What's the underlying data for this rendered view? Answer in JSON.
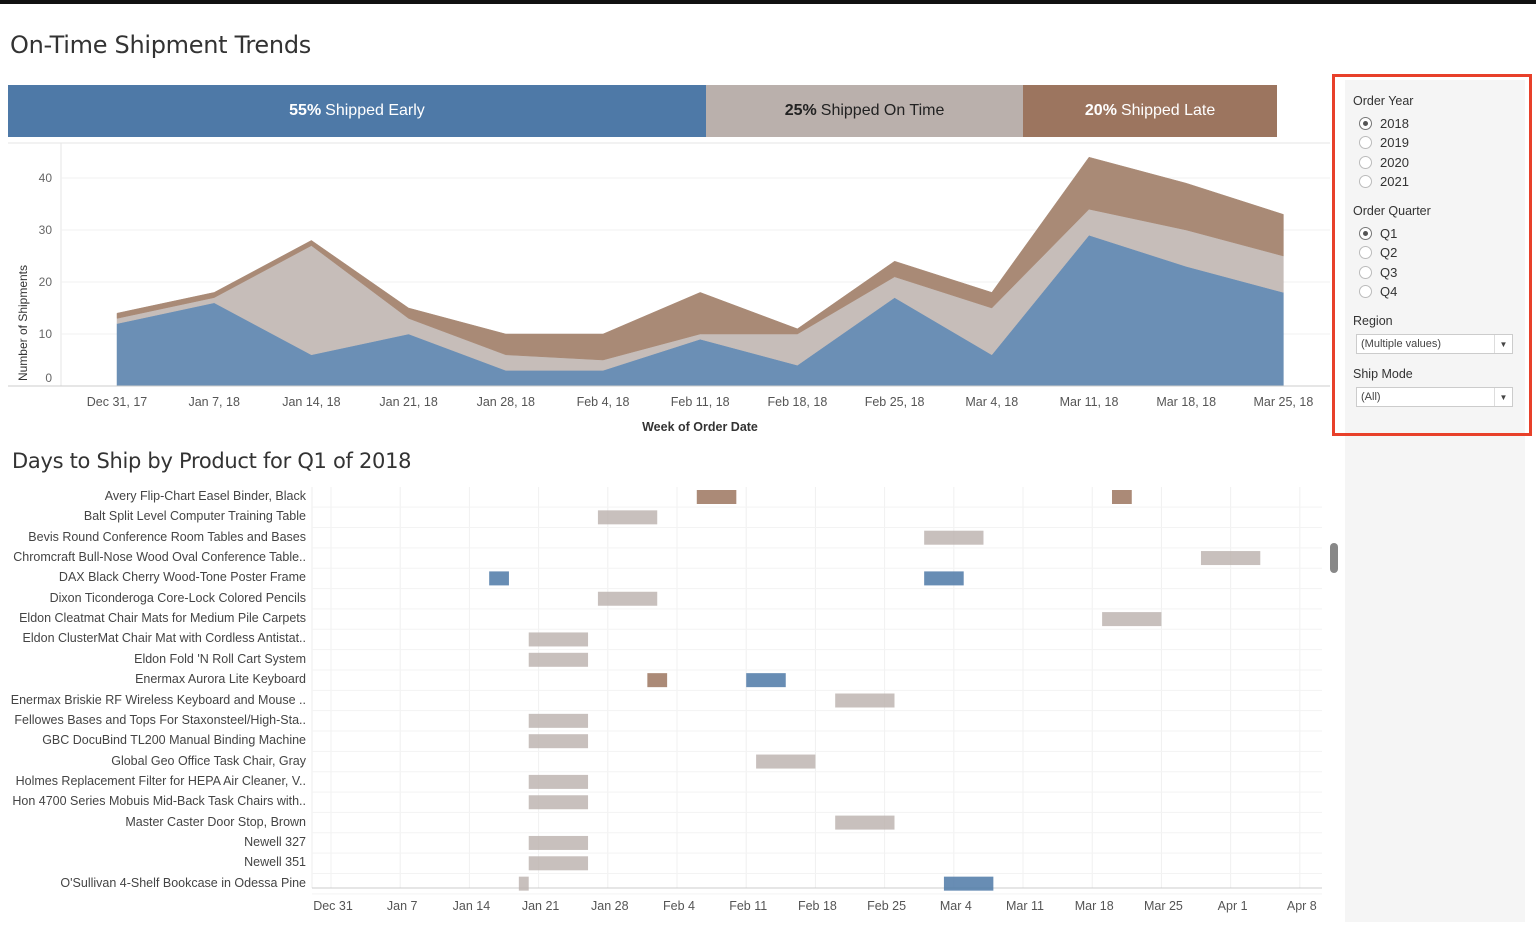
{
  "title": "On-Time Shipment Trends",
  "colors": {
    "early": "#4e79a7",
    "ontime": "#bab0ac",
    "late": "#9c755f",
    "early_area": "#6b8fb5",
    "ontime_area": "#c6bdb9",
    "late_area": "#a98a76",
    "highlight": "#e8402a"
  },
  "banner": [
    {
      "pct": "55%",
      "label": "Shipped Early",
      "share": 55,
      "key": "early"
    },
    {
      "pct": "25%",
      "label": "Shipped On Time",
      "share": 25,
      "key": "ontime"
    },
    {
      "pct": "20%",
      "label": "Shipped Late",
      "share": 20,
      "key": "late"
    }
  ],
  "chart_data": [
    {
      "type": "area",
      "stacked": true,
      "xlabel": "Week of Order Date",
      "ylabel": "Number of Shipments",
      "ylim": [
        0,
        46
      ],
      "yticks": [
        0,
        10,
        20,
        30,
        40
      ],
      "grid": true,
      "categories": [
        "Dec 31, 17",
        "Jan 7, 18",
        "Jan 14, 18",
        "Jan 21, 18",
        "Jan 28, 18",
        "Feb 4, 18",
        "Feb 11, 18",
        "Feb 18, 18",
        "Feb 25, 18",
        "Mar 4, 18",
        "Mar 11, 18",
        "Mar 18, 18",
        "Mar 25, 18"
      ],
      "series": [
        {
          "key": "early",
          "values": [
            12,
            16,
            6,
            10,
            3,
            3,
            9,
            4,
            17,
            6,
            29,
            23,
            18
          ]
        },
        {
          "key": "ontime",
          "values": [
            1,
            1,
            21,
            3,
            3,
            2,
            1,
            6,
            4,
            9,
            5,
            7,
            7
          ]
        },
        {
          "key": "late",
          "values": [
            1,
            1,
            1,
            2,
            4,
            5,
            8,
            1,
            3,
            3,
            10,
            9,
            8
          ]
        }
      ]
    },
    {
      "type": "gantt",
      "title": "Days to Ship by Product for Q1 of 2018",
      "xticks": [
        "Dec 31",
        "Jan 7",
        "Jan 14",
        "Jan 21",
        "Jan 28",
        "Feb 4",
        "Feb 11",
        "Feb 18",
        "Feb 25",
        "Mar 4",
        "Mar 11",
        "Mar 18",
        "Mar 25",
        "Apr 1",
        "Apr 8"
      ],
      "rows": [
        {
          "product": "Avery Flip-Chart Easel Binder, Black",
          "bars": [
            {
              "start": "2018-02-06",
              "days": 4,
              "status": "late"
            },
            {
              "start": "2018-03-20",
              "days": 2,
              "status": "late"
            }
          ]
        },
        {
          "product": "Balt Split Level Computer Training Table",
          "bars": [
            {
              "start": "2018-01-27",
              "days": 6,
              "status": "ontime"
            }
          ]
        },
        {
          "product": "Bevis Round Conference Room Tables and Bases",
          "bars": [
            {
              "start": "2018-03-01",
              "days": 6,
              "status": "ontime"
            }
          ]
        },
        {
          "product": "Chromcraft Bull-Nose Wood Oval Conference Table..",
          "bars": [
            {
              "start": "2018-03-29",
              "days": 6,
              "status": "ontime"
            }
          ]
        },
        {
          "product": "DAX Black Cherry Wood-Tone Poster Frame",
          "bars": [
            {
              "start": "2018-01-16",
              "days": 2,
              "status": "early"
            },
            {
              "start": "2018-03-01",
              "days": 4,
              "status": "early"
            }
          ]
        },
        {
          "product": "Dixon Ticonderoga Core-Lock Colored Pencils",
          "bars": [
            {
              "start": "2018-01-27",
              "days": 6,
              "status": "ontime"
            }
          ]
        },
        {
          "product": "Eldon Cleatmat Chair Mats for Medium Pile Carpets",
          "bars": [
            {
              "start": "2018-03-19",
              "days": 6,
              "status": "ontime"
            }
          ]
        },
        {
          "product": "Eldon ClusterMat Chair Mat with Cordless Antistat..",
          "bars": [
            {
              "start": "2018-01-20",
              "days": 6,
              "status": "ontime"
            }
          ]
        },
        {
          "product": "Eldon Fold 'N Roll Cart System",
          "bars": [
            {
              "start": "2018-01-20",
              "days": 6,
              "status": "ontime"
            }
          ]
        },
        {
          "product": "Enermax Aurora Lite Keyboard",
          "bars": [
            {
              "start": "2018-02-01",
              "days": 2,
              "status": "late"
            },
            {
              "start": "2018-02-11",
              "days": 4,
              "status": "early"
            }
          ]
        },
        {
          "product": "Enermax Briskie RF Wireless Keyboard and Mouse ..",
          "bars": [
            {
              "start": "2018-02-20",
              "days": 6,
              "status": "ontime"
            }
          ]
        },
        {
          "product": "Fellowes Bases and Tops For Staxonsteel/High-Sta..",
          "bars": [
            {
              "start": "2018-01-20",
              "days": 6,
              "status": "ontime"
            }
          ]
        },
        {
          "product": "GBC DocuBind TL200 Manual Binding Machine",
          "bars": [
            {
              "start": "2018-01-20",
              "days": 6,
              "status": "ontime"
            }
          ]
        },
        {
          "product": "Global Geo Office Task Chair, Gray",
          "bars": [
            {
              "start": "2018-02-12",
              "days": 6,
              "status": "ontime"
            }
          ]
        },
        {
          "product": "Holmes Replacement Filter for HEPA Air Cleaner, V..",
          "bars": [
            {
              "start": "2018-01-20",
              "days": 6,
              "status": "ontime"
            }
          ]
        },
        {
          "product": "Hon 4700 Series Mobuis Mid-Back Task Chairs with..",
          "bars": [
            {
              "start": "2018-01-20",
              "days": 6,
              "status": "ontime"
            }
          ]
        },
        {
          "product": "Master Caster Door Stop, Brown",
          "bars": [
            {
              "start": "2018-02-20",
              "days": 6,
              "status": "ontime"
            }
          ]
        },
        {
          "product": "Newell 327",
          "bars": [
            {
              "start": "2018-01-20",
              "days": 6,
              "status": "ontime"
            }
          ]
        },
        {
          "product": "Newell 351",
          "bars": [
            {
              "start": "2018-01-20",
              "days": 6,
              "status": "ontime"
            }
          ]
        },
        {
          "product": "O'Sullivan 4-Shelf Bookcase in Odessa Pine",
          "bars": [
            {
              "start": "2018-01-19",
              "days": 1,
              "status": "ontime"
            },
            {
              "start": "2018-03-03",
              "days": 5,
              "status": "early"
            }
          ]
        }
      ]
    }
  ],
  "filters": {
    "year": {
      "label": "Order Year",
      "options": [
        "2018",
        "2019",
        "2020",
        "2021"
      ],
      "selected": "2018"
    },
    "quarter": {
      "label": "Order Quarter",
      "options": [
        "Q1",
        "Q2",
        "Q3",
        "Q4"
      ],
      "selected": "Q1"
    },
    "region": {
      "label": "Region",
      "value": "(Multiple values)"
    },
    "ship_mode": {
      "label": "Ship Mode",
      "value": "(All)"
    }
  }
}
